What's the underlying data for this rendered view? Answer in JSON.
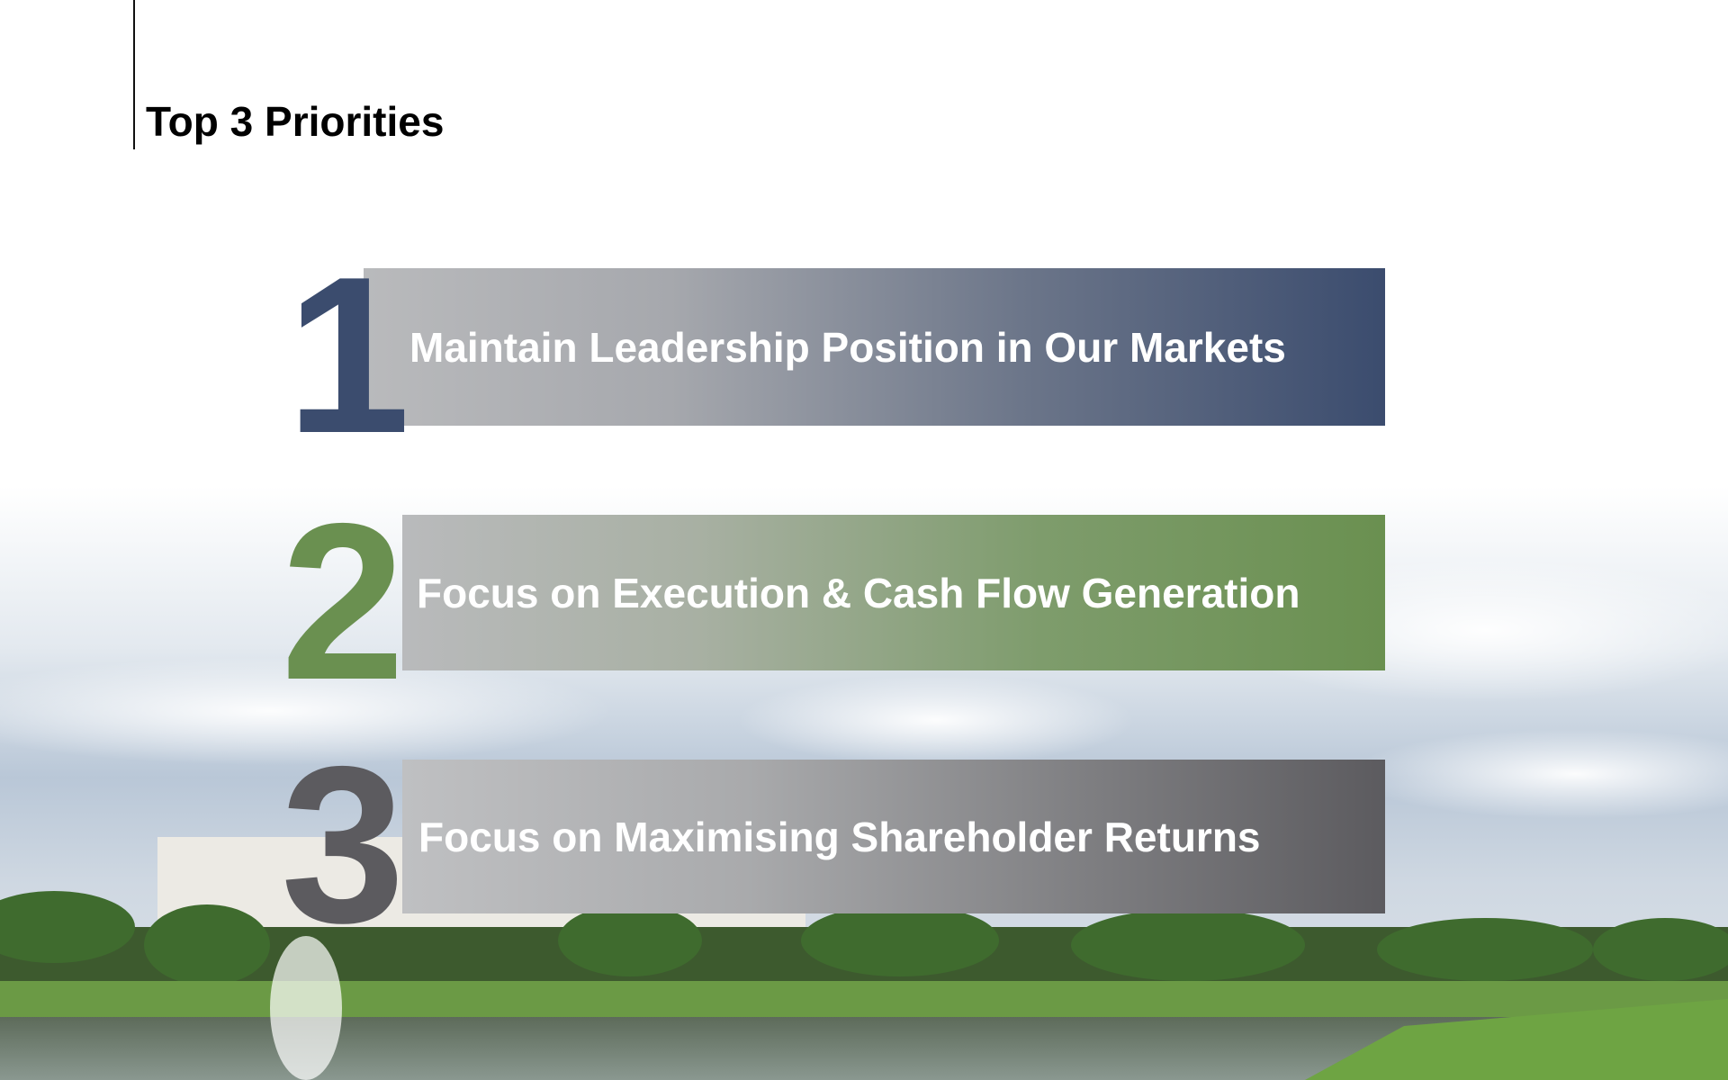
{
  "header": {
    "title": "Top 3 Priorities"
  },
  "priorities": [
    {
      "number": 1,
      "text": "Maintain Leadership Position in Our Markets"
    },
    {
      "number": 2,
      "text": "Focus on Execution & Cash Flow Generation"
    },
    {
      "number": 3,
      "text": "Focus on Maximising Shareholder Returns"
    }
  ]
}
